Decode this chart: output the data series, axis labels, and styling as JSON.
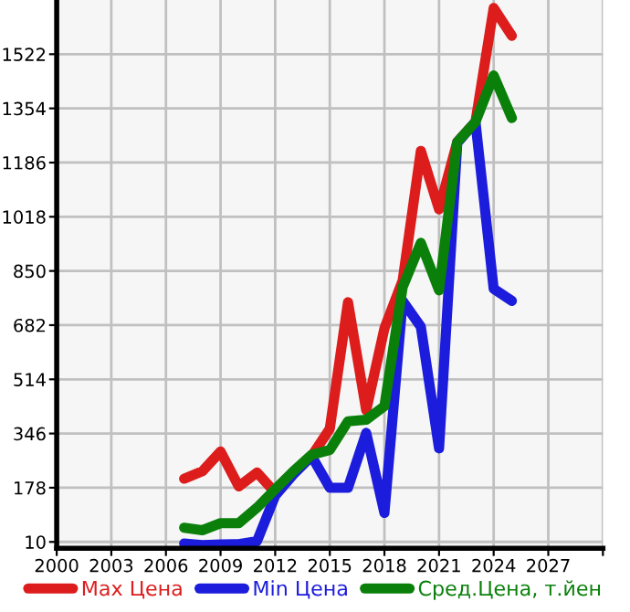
{
  "chart_data": {
    "type": "line",
    "x": [
      2007,
      2008,
      2009,
      2010,
      2011,
      2012,
      2013,
      2014,
      2015,
      2016,
      2017,
      2018,
      2019,
      2020,
      2021,
      2022,
      2023,
      2024,
      2025
    ],
    "series": [
      {
        "name": "Max Цена",
        "color": "#dd1c1c",
        "values": [
          206,
          229,
          290,
          182,
          225,
          163,
          null,
          276,
          361,
          753,
          418,
          672,
          820,
          1222,
          1041,
          1250,
          1312,
          1665,
          1579
        ]
      },
      {
        "name": "Min Цена",
        "color": "#1c1cdd",
        "values": [
          5,
          0,
          2,
          3,
          12,
          153,
          219,
          276,
          178,
          178,
          348,
          100,
          757,
          677,
          300,
          1247,
          1312,
          795,
          757
        ]
      },
      {
        "name": "Сред.Цена, т.йен",
        "color": "#0a800a",
        "values": [
          54,
          46,
          68,
          68,
          116,
          173,
          229,
          280,
          295,
          384,
          389,
          431,
          800,
          937,
          790,
          1250,
          1312,
          1456,
          1324
        ]
      }
    ],
    "xlim": [
      2000,
      2030
    ],
    "xticks": [
      2000,
      2003,
      2006,
      2009,
      2012,
      2015,
      2018,
      2021,
      2024,
      2027,
      {
        "value": 2030,
        "label": null
      }
    ],
    "ylim": [
      -10,
      1690
    ],
    "yticks": [
      10,
      178,
      346,
      514,
      682,
      850,
      1018,
      1186,
      1354,
      1522
    ],
    "grid": true,
    "legend": "bottom",
    "marker": "none",
    "line_style": "solid"
  }
}
